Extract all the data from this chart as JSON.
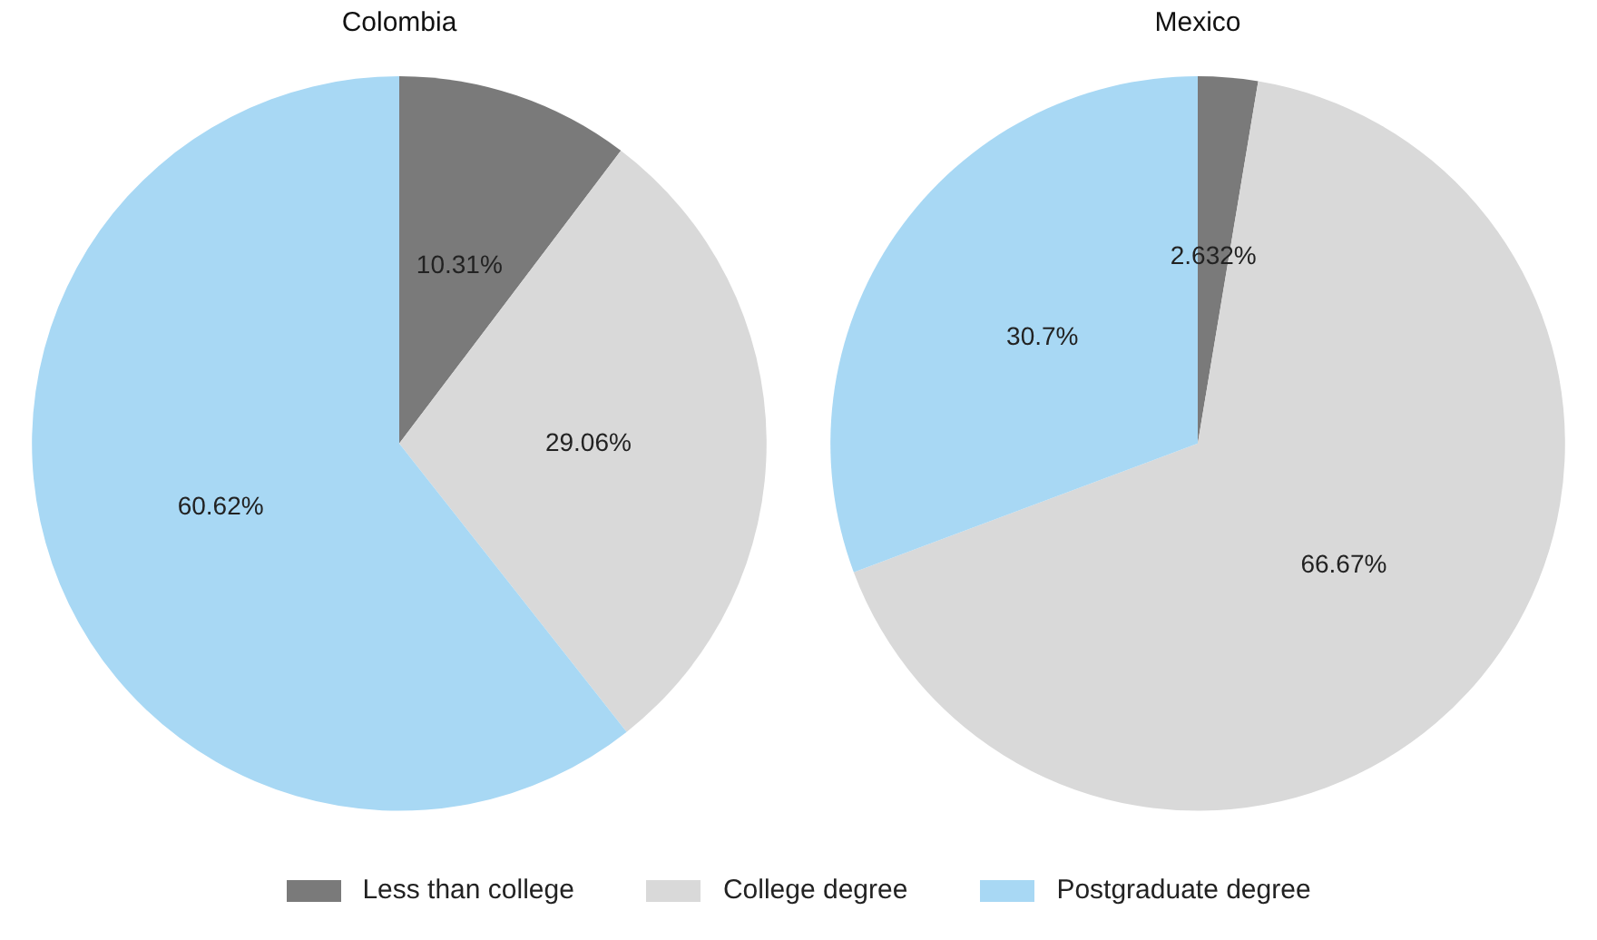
{
  "chart_data": [
    {
      "type": "pie",
      "title": "Colombia",
      "categories": [
        "Less than college",
        "College degree",
        "Postgraduate degree"
      ],
      "values": [
        10.31,
        29.06,
        60.62
      ],
      "value_labels": [
        "10.31%",
        "29.06%",
        "60.62%"
      ],
      "colors": [
        "#7a7a7a",
        "#d9d9d9",
        "#a8d8f4"
      ],
      "legend": "bottom"
    },
    {
      "type": "pie",
      "title": "Mexico",
      "categories": [
        null,
        null,
        null
      ],
      "values": [
        2.632,
        66.67,
        30.7
      ],
      "value_labels": [
        "2.632%",
        "66.67%",
        "30.7%"
      ],
      "colors": [
        "#7a7a7a",
        "#d9d9d9",
        "#a8d8f4"
      ]
    }
  ]
}
